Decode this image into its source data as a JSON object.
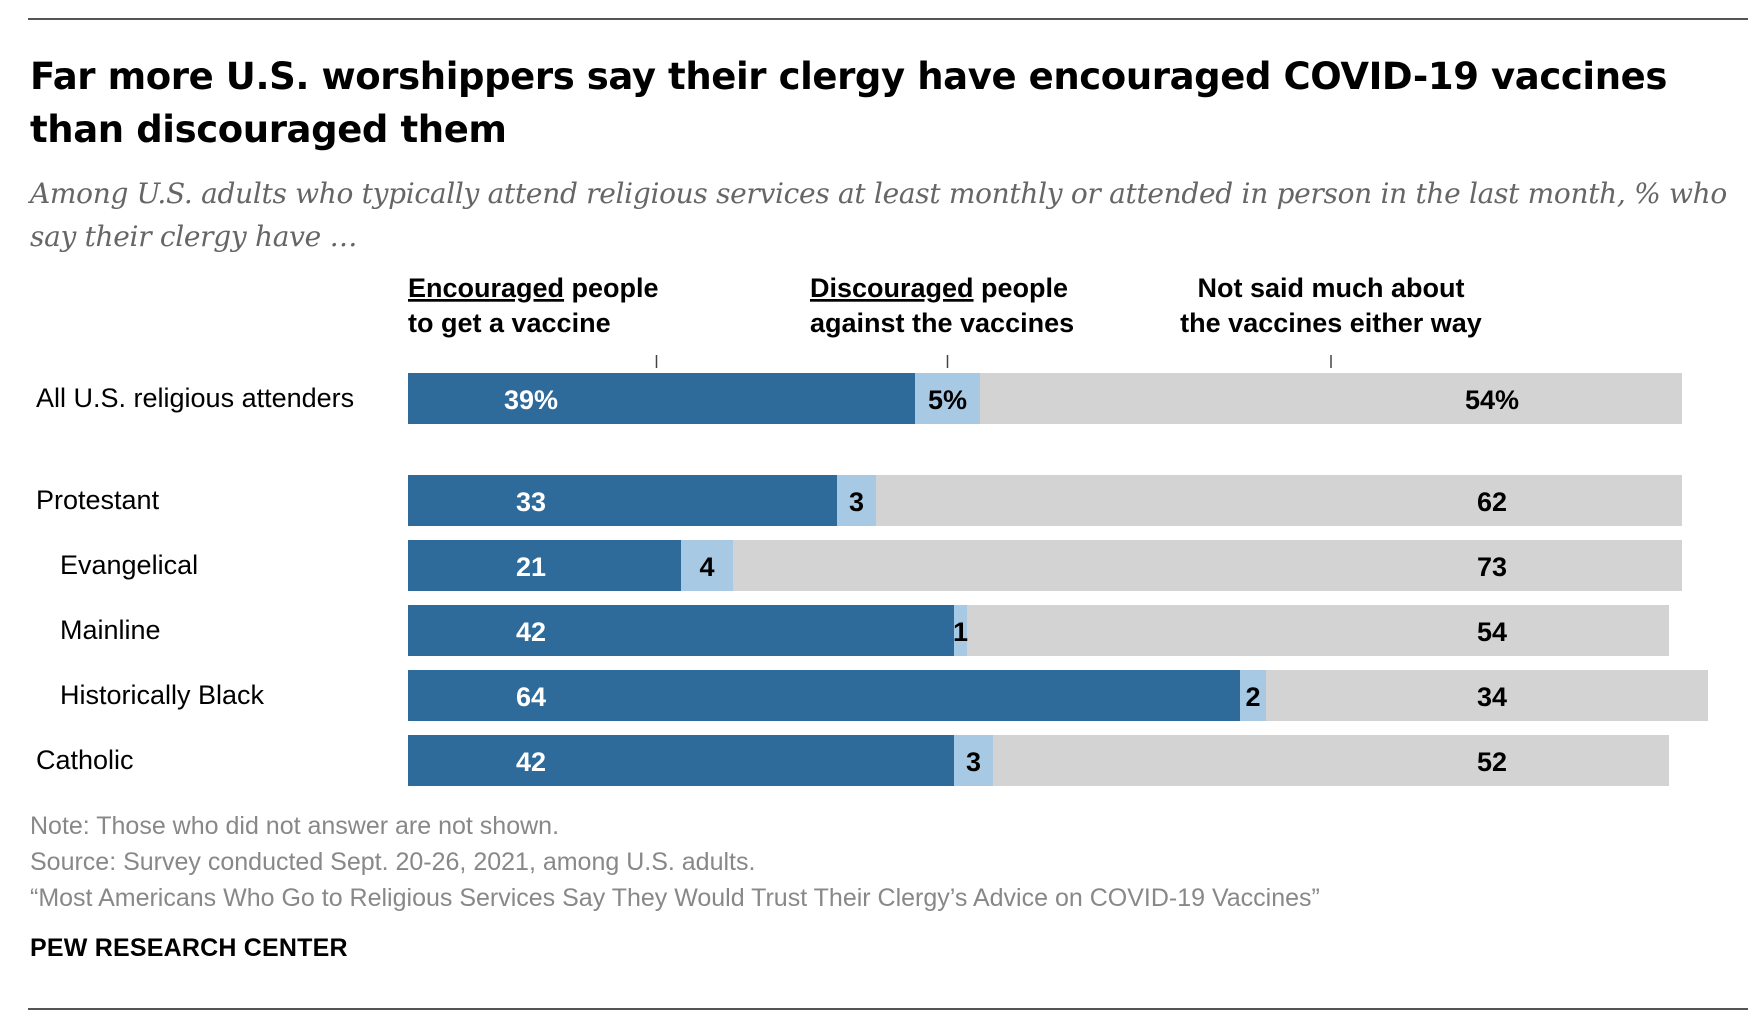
{
  "title": "Far more U.S. worshippers say their clergy have encouraged COVID-19 vaccines than discouraged them",
  "subtitle": "Among U.S. adults who typically attend religious services at least monthly or attended in person in the last month, % who say their clergy have …",
  "footer": {
    "note": "Note: Those who did not answer are not shown.",
    "source": "Source: Survey conducted Sept. 20-26, 2021, among U.S. adults.",
    "report": "“Most Americans Who Go to Religious Services Say They Would Trust Their Clergy’s Advice on COVID-19 Vaccines”",
    "brand": "PEW RESEARCH CENTER"
  },
  "colors": {
    "encouraged": "#2e6b9b",
    "discouraged": "#a8c9e3",
    "not_said": "#d3d3d3"
  },
  "chart_data": {
    "type": "bar",
    "orientation": "horizontal",
    "stacked": true,
    "series": [
      {
        "key": "encouraged",
        "header_underlined": "Encouraged",
        "header_rest_line1": " people",
        "header_line2": "to get a vaccine",
        "values": [
          39,
          33,
          21,
          42,
          64,
          42
        ],
        "labels": [
          "39%",
          "33",
          "21",
          "42",
          "64",
          "42"
        ]
      },
      {
        "key": "discouraged",
        "header_underlined": "Discouraged",
        "header_rest_line1": " people",
        "header_line2": "against the vaccines",
        "values": [
          5,
          3,
          4,
          1,
          2,
          3
        ],
        "labels": [
          "5%",
          "3",
          "4",
          "1",
          "2",
          "3"
        ]
      },
      {
        "key": "not_said",
        "header_underlined": "",
        "header_rest_line1": "Not said much about",
        "header_line2": "the vaccines either way",
        "values": [
          54,
          62,
          73,
          54,
          34,
          52
        ],
        "labels": [
          "54%",
          "62",
          "73",
          "54",
          "34",
          "52"
        ]
      }
    ],
    "categories": [
      "All U.S. religious attenders",
      "Protestant",
      "Evangelical",
      "Mainline",
      "Historically Black",
      "Catholic"
    ],
    "category_indent": [
      false,
      false,
      true,
      true,
      true,
      false
    ],
    "xlim": [
      0,
      100
    ],
    "grid": false,
    "legend": "column headers above bars"
  }
}
